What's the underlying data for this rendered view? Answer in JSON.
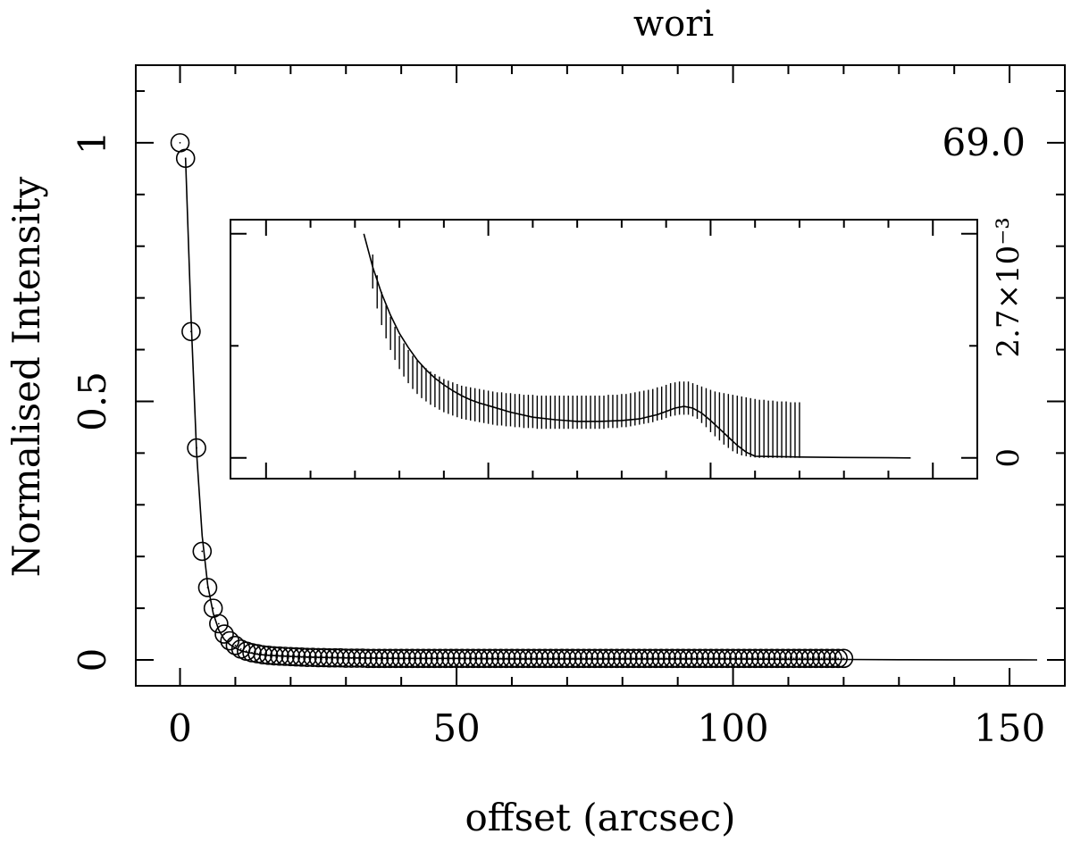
{
  "chart_data": [
    {
      "type": "scatter",
      "title": "wori",
      "xlabel": "offset (arcsec)",
      "ylabel": "Normalised Intensity",
      "xlim": [
        -8,
        160
      ],
      "ylim": [
        -0.05,
        1.15
      ],
      "x_ticks": [
        "0",
        "50",
        "100",
        "150"
      ],
      "y_ticks": [
        "0",
        "0.5",
        "1"
      ],
      "right_annotation": "69.0",
      "grid": false,
      "series": [
        {
          "marker": "open-circle",
          "x": [
            0,
            1,
            2,
            3,
            4,
            5,
            6,
            7,
            8,
            9,
            10,
            11,
            12,
            13,
            14,
            15,
            16,
            17,
            18,
            19,
            20,
            21,
            22,
            23,
            24,
            25,
            26,
            27,
            28,
            29,
            30,
            31,
            32,
            33,
            34,
            35,
            36,
            37,
            38,
            39,
            40,
            41,
            42,
            43,
            44,
            45,
            46,
            47,
            48,
            49,
            50,
            51,
            52,
            53,
            54,
            55,
            56,
            57,
            58,
            59,
            60,
            61,
            62,
            63,
            64,
            65,
            66,
            67,
            68,
            69,
            70,
            71,
            72,
            73,
            74,
            75,
            76,
            77,
            78,
            79,
            80,
            81,
            82,
            83,
            84,
            85,
            86,
            87,
            88,
            89,
            90,
            91,
            92,
            93,
            94,
            95,
            96,
            97,
            98,
            99,
            100,
            101,
            102,
            103,
            104,
            105,
            106,
            107,
            108,
            109,
            110,
            111,
            112,
            113,
            114,
            115,
            116,
            117,
            118,
            119,
            120
          ],
          "y": [
            1.0,
            0.97,
            0.635,
            0.41,
            0.21,
            0.14,
            0.1,
            0.07,
            0.05,
            0.037,
            0.028,
            0.021,
            0.017,
            0.014,
            0.012,
            0.01,
            0.009,
            0.008,
            0.0075,
            0.007,
            0.0065,
            0.006,
            0.0055,
            0.005,
            0.005,
            0.0045,
            0.0045,
            0.004,
            0.004,
            0.004,
            0.0035,
            0.0035,
            0.0035,
            0.0035,
            0.003,
            0.003,
            0.003,
            0.003,
            0.003,
            0.003,
            0.003,
            0.003,
            0.003,
            0.003,
            0.003,
            0.003,
            0.003,
            0.003,
            0.003,
            0.003,
            0.003,
            0.003,
            0.003,
            0.003,
            0.003,
            0.003,
            0.003,
            0.003,
            0.003,
            0.003,
            0.003,
            0.003,
            0.003,
            0.003,
            0.003,
            0.003,
            0.003,
            0.003,
            0.003,
            0.003,
            0.003,
            0.003,
            0.003,
            0.003,
            0.003,
            0.003,
            0.003,
            0.003,
            0.003,
            0.003,
            0.003,
            0.003,
            0.003,
            0.003,
            0.003,
            0.003,
            0.003,
            0.003,
            0.003,
            0.003,
            0.003,
            0.003,
            0.003,
            0.003,
            0.003,
            0.003,
            0.003,
            0.003,
            0.003,
            0.003,
            0.003,
            0.003,
            0.003,
            0.003,
            0.003,
            0.003,
            0.003,
            0.003,
            0.003,
            0.003,
            0.003,
            0.003,
            0.003,
            0.003,
            0.003,
            0.003,
            0.003,
            0.003,
            0.003,
            0.003,
            0.003
          ]
        },
        {
          "marker": "line",
          "x": [
            1,
            2,
            3,
            4,
            5,
            6,
            7,
            8,
            9,
            10,
            11,
            12,
            13,
            14,
            15,
            16,
            18,
            20,
            22,
            25,
            30,
            40,
            50,
            60,
            70,
            80,
            90,
            100,
            110,
            120,
            130,
            140,
            155
          ],
          "y": [
            0.97,
            0.66,
            0.4,
            0.24,
            0.145,
            0.09,
            0.058,
            0.04,
            0.03,
            0.023,
            0.018,
            0.015,
            0.013,
            0.011,
            0.01,
            0.009,
            0.008,
            0.007,
            0.006,
            0.005,
            0.004,
            0.003,
            0.003,
            0.002,
            0.002,
            0.002,
            0.002,
            0.002,
            0.001,
            0.001,
            0.0005,
            0.0002,
            0.0
          ]
        }
      ]
    },
    {
      "type": "line",
      "inset": true,
      "xlim": [
        -8,
        160
      ],
      "ylim": [
        -0.00025,
        0.00287
      ],
      "y_ticks": [
        "0",
        "2.7×10⁻³"
      ],
      "errorbars": {
        "x": [
          24,
          25,
          26,
          27,
          28,
          29,
          30,
          31,
          32,
          33,
          34,
          35,
          36,
          37,
          38,
          39,
          40,
          41,
          42,
          43,
          44,
          45,
          46,
          47,
          48,
          49,
          50,
          51,
          52,
          53,
          54,
          55,
          56,
          57,
          58,
          59,
          60,
          61,
          62,
          63,
          64,
          65,
          66,
          67,
          68,
          69,
          70,
          71,
          72,
          73,
          74,
          75,
          76,
          77,
          78,
          79,
          80,
          81,
          82,
          83,
          84,
          85,
          86,
          87,
          88,
          89,
          90,
          91,
          92,
          93,
          94,
          95,
          96,
          97,
          98,
          99,
          100,
          101,
          102,
          103,
          104,
          105,
          106,
          107,
          108,
          109,
          110,
          111,
          112,
          113,
          114,
          115,
          116,
          117,
          118,
          119,
          120
        ],
        "low": [
          2.04,
          1.8,
          1.6,
          1.44,
          1.3,
          1.18,
          1.07,
          0.98,
          0.9,
          0.83,
          0.77,
          0.72,
          0.68,
          0.64,
          0.61,
          0.58,
          0.55,
          0.53,
          0.51,
          0.49,
          0.47,
          0.46,
          0.45,
          0.44,
          0.43,
          0.42,
          0.41,
          0.4,
          0.39,
          0.39,
          0.38,
          0.38,
          0.37,
          0.37,
          0.36,
          0.36,
          0.36,
          0.35,
          0.35,
          0.35,
          0.35,
          0.35,
          0.35,
          0.35,
          0.35,
          0.35,
          0.35,
          0.35,
          0.35,
          0.35,
          0.35,
          0.35,
          0.35,
          0.36,
          0.36,
          0.36,
          0.37,
          0.37,
          0.38,
          0.39,
          0.4,
          0.41,
          0.42,
          0.43,
          0.45,
          0.46,
          0.48,
          0.5,
          0.51,
          0.52,
          0.52,
          0.52,
          0.5,
          0.47,
          0.42,
          0.37,
          0.31,
          0.26,
          0.21,
          0.16,
          0.12,
          0.08,
          0.05,
          0.03,
          0.02,
          0.01,
          0.005,
          0.0,
          0.0,
          0.0,
          0.0,
          0.0,
          0.0,
          0.0,
          0.0,
          0.0,
          0.0
        ],
        "high": [
          2.45,
          2.2,
          2.0,
          1.84,
          1.7,
          1.58,
          1.47,
          1.38,
          1.3,
          1.23,
          1.17,
          1.12,
          1.08,
          1.04,
          1.01,
          0.98,
          0.95,
          0.93,
          0.91,
          0.89,
          0.87,
          0.86,
          0.85,
          0.84,
          0.83,
          0.82,
          0.81,
          0.8,
          0.79,
          0.79,
          0.78,
          0.78,
          0.77,
          0.77,
          0.76,
          0.76,
          0.76,
          0.75,
          0.75,
          0.75,
          0.75,
          0.75,
          0.75,
          0.75,
          0.75,
          0.75,
          0.75,
          0.75,
          0.75,
          0.75,
          0.75,
          0.75,
          0.75,
          0.76,
          0.76,
          0.76,
          0.77,
          0.77,
          0.78,
          0.79,
          0.8,
          0.81,
          0.82,
          0.83,
          0.85,
          0.86,
          0.88,
          0.9,
          0.91,
          0.92,
          0.92,
          0.92,
          0.9,
          0.88,
          0.86,
          0.84,
          0.82,
          0.8,
          0.79,
          0.78,
          0.77,
          0.76,
          0.75,
          0.74,
          0.73,
          0.72,
          0.71,
          0.7,
          0.7,
          0.69,
          0.69,
          0.68,
          0.68,
          0.68,
          0.67,
          0.67,
          0.67
        ]
      },
      "model": {
        "x": [
          22,
          24,
          26,
          28,
          30,
          32,
          34,
          36,
          38,
          40,
          42,
          44,
          46,
          48,
          50,
          55,
          60,
          65,
          70,
          75,
          80,
          84,
          88,
          90,
          92,
          94,
          96,
          98,
          100,
          102,
          104,
          106,
          108,
          110,
          120,
          130,
          140,
          145
        ],
        "y": [
          2.7,
          2.3,
          1.98,
          1.72,
          1.5,
          1.33,
          1.18,
          1.06,
          0.96,
          0.88,
          0.81,
          0.75,
          0.7,
          0.66,
          0.63,
          0.55,
          0.49,
          0.46,
          0.44,
          0.44,
          0.45,
          0.47,
          0.52,
          0.56,
          0.6,
          0.62,
          0.6,
          0.54,
          0.45,
          0.35,
          0.25,
          0.15,
          0.07,
          0.02,
          0.01,
          0.005,
          0.002,
          0.0
        ]
      }
    }
  ]
}
